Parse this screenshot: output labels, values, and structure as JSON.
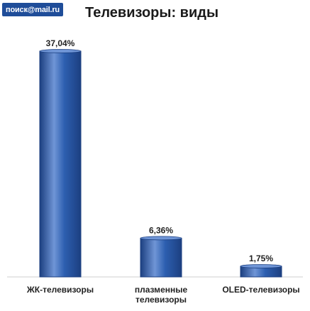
{
  "header": {
    "logo_text": "поиск@mail.ru",
    "title": "Телевизоры: виды"
  },
  "colors": {
    "bar_fill": "#2d5fb0",
    "bar_dark": "#1c3f80",
    "bar_light": "#6f95d6",
    "logo_bg": "#1f4d99"
  },
  "chart_data": {
    "type": "bar",
    "title": "Телевизоры: виды",
    "categories": [
      [
        "ЖК-телевизоры"
      ],
      [
        "плазменные",
        "телевизоры"
      ],
      [
        "OLED-телевизоры"
      ]
    ],
    "values": [
      37.04,
      6.36,
      1.75
    ],
    "value_labels": [
      "37,04%",
      "6,36%",
      "1,75%"
    ],
    "ylim": [
      0,
      37.04
    ],
    "grid": false,
    "legend": "none"
  }
}
